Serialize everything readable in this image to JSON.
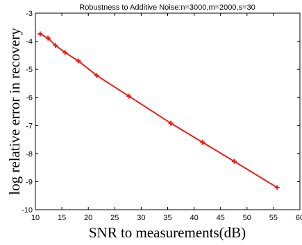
{
  "chart_data": {
    "type": "line",
    "title": "Robustness to Additive Noise:n=3000,m=2000,s=30",
    "xlabel": "SNR to measurements(dB)",
    "ylabel": "log relative error in recovery",
    "xlim": [
      10,
      60
    ],
    "ylim": [
      -10,
      -3
    ],
    "xticks": [
      "10",
      "15",
      "20",
      "25",
      "30",
      "35",
      "40",
      "45",
      "50",
      "55",
      "60"
    ],
    "yticks": [
      "-3",
      "-4",
      "-5",
      "-6",
      "-7",
      "-8",
      "-9",
      "-10"
    ],
    "grid": false,
    "series": [
      {
        "color": "#ee1c1c",
        "marker": "plus",
        "x": [
          10.9,
          12.4,
          13.8,
          15.6,
          18.1,
          21.6,
          27.7,
          35.6,
          41.6,
          47.6,
          55.7
        ],
        "y": [
          -3.74,
          -3.89,
          -4.15,
          -4.4,
          -4.7,
          -5.22,
          -5.96,
          -6.92,
          -7.6,
          -8.28,
          -9.21
        ]
      }
    ]
  }
}
